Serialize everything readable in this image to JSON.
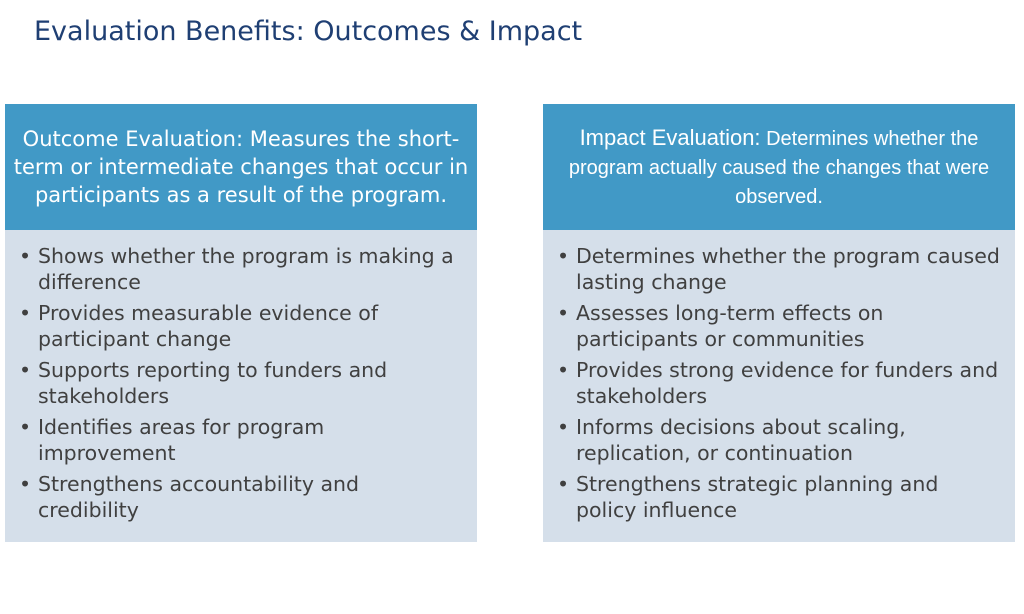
{
  "title": "Evaluation Benefits: Outcomes & Impact",
  "panels": [
    {
      "heading_lead": "Outcome Evaluation:",
      "heading_rest": " Measures the short-term or intermediate changes that occur in participants as a result of the program.",
      "bullets": [
        "Shows whether the program is making a difference",
        "Provides measurable evidence of participant change",
        "Supports reporting to funders and stakeholders",
        "Identifies areas for program improvement",
        "Strengthens accountability and credibility"
      ]
    },
    {
      "heading_lead": "Impact Evaluation:",
      "heading_rest": " Determines whether the program actually caused the changes that were observed.",
      "bullets": [
        "Determines whether the program caused lasting change",
        "Assesses long-term effects on participants or communities",
        "Provides strong evidence for funders and stakeholders",
        "Informs decisions about scaling, replication, or continuation",
        "Strengthens strategic planning and policy influence"
      ]
    }
  ],
  "colors": {
    "title": "#1f3f73",
    "header_bg": "#4199c6",
    "body_bg": "#d5dfea",
    "body_text": "#404040"
  }
}
